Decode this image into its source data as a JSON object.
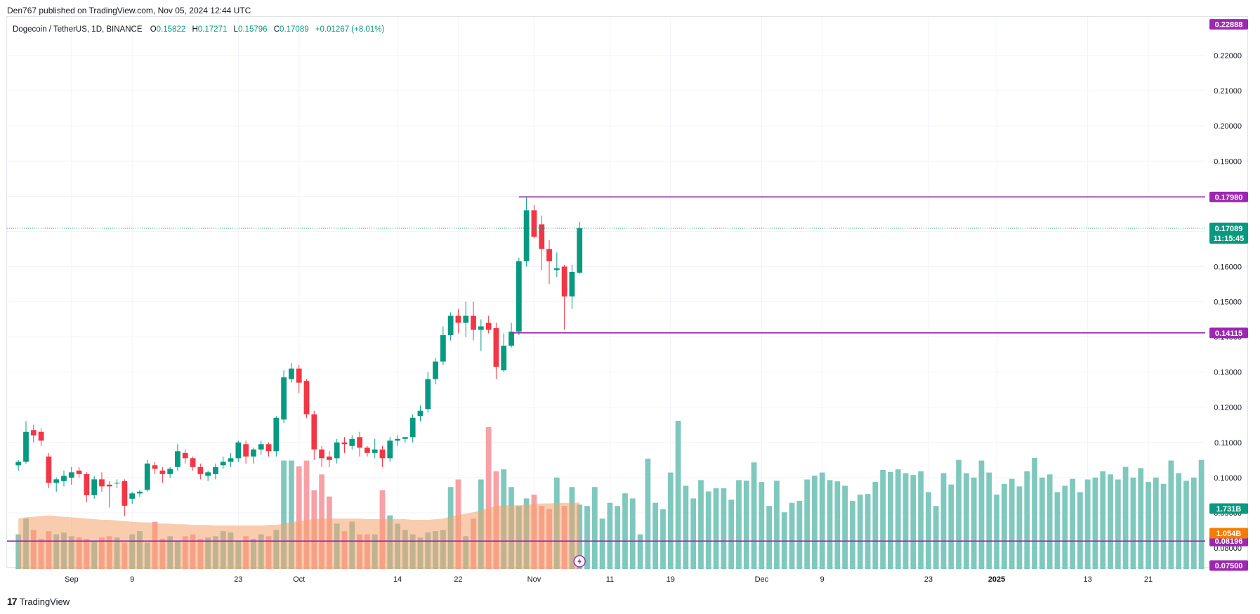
{
  "header": {
    "publisher": "Den767 published on TradingView.com, Nov 05, 2024 12:44 UTC"
  },
  "legend": {
    "symbol": "Dogecoin / TetherUS, 1D, BINANCE",
    "open_key": "O",
    "open": "0.15822",
    "high_key": "H",
    "high": "0.17271",
    "low_key": "L",
    "low": "0.15796",
    "close_key": "C",
    "close": "0.17089",
    "change": "+0.01267 (+8.01%)"
  },
  "footer": {
    "brand": "TradingView",
    "brand_icon": "tradingview-logo-icon"
  },
  "colors": {
    "up": "#089981",
    "down": "#f23645",
    "up_vol": "#7fc8bd",
    "down_vol": "#f7a1a6",
    "level": "#9c27b0",
    "vol_ma": "#f5a26b",
    "grid": "#f0f3fa",
    "price_line": "#089981"
  },
  "chart_data": {
    "type": "candlestick",
    "interval": "1D",
    "y_axis": {
      "range": [
        0.074,
        0.231
      ],
      "ticks": [
        "0.22000",
        "0.21000",
        "0.20000",
        "0.19000",
        "0.18000",
        "0.17000",
        "0.16000",
        "0.15000",
        "0.14000",
        "0.13000",
        "0.12000",
        "0.11000",
        "0.10000",
        "0.09000",
        "0.08000"
      ],
      "tick_values": [
        0.22,
        0.21,
        0.2,
        0.19,
        0.18,
        0.17,
        0.16,
        0.15,
        0.14,
        0.13,
        0.12,
        0.11,
        0.1,
        0.09,
        0.08
      ]
    },
    "x_axis": {
      "labels": [
        {
          "text": "Sep",
          "bar": 7
        },
        {
          "text": "9",
          "bar": 15
        },
        {
          "text": "23",
          "bar": 29
        },
        {
          "text": "Oct",
          "bar": 37
        },
        {
          "text": "14",
          "bar": 50
        },
        {
          "text": "22",
          "bar": 58
        },
        {
          "text": "Nov",
          "bar": 68
        },
        {
          "text": "11",
          "bar": 78
        },
        {
          "text": "19",
          "bar": 86
        },
        {
          "text": "Dec",
          "bar": 98
        },
        {
          "text": "9",
          "bar": 106
        },
        {
          "text": "23",
          "bar": 120
        },
        {
          "text": "2025",
          "bar": 129
        },
        {
          "text": "13",
          "bar": 141
        },
        {
          "text": "21",
          "bar": 149
        }
      ],
      "total_slots": 158
    },
    "candles": [
      {
        "o": 0.1035,
        "h": 0.105,
        "l": 0.102,
        "c": 0.1045
      },
      {
        "o": 0.1045,
        "h": 0.116,
        "l": 0.104,
        "c": 0.113
      },
      {
        "o": 0.1135,
        "h": 0.115,
        "l": 0.11,
        "c": 0.112
      },
      {
        "o": 0.113,
        "h": 0.114,
        "l": 0.109,
        "c": 0.1105
      },
      {
        "o": 0.106,
        "h": 0.107,
        "l": 0.097,
        "c": 0.0985
      },
      {
        "o": 0.0985,
        "h": 0.1,
        "l": 0.096,
        "c": 0.0995
      },
      {
        "o": 0.099,
        "h": 0.102,
        "l": 0.0975,
        "c": 0.1005
      },
      {
        "o": 0.1,
        "h": 0.103,
        "l": 0.098,
        "c": 0.1015
      },
      {
        "o": 0.102,
        "h": 0.103,
        "l": 0.1,
        "c": 0.101
      },
      {
        "o": 0.101,
        "h": 0.1015,
        "l": 0.093,
        "c": 0.095
      },
      {
        "o": 0.095,
        "h": 0.1005,
        "l": 0.094,
        "c": 0.0995
      },
      {
        "o": 0.0995,
        "h": 0.1015,
        "l": 0.096,
        "c": 0.0975
      },
      {
        "o": 0.098,
        "h": 0.099,
        "l": 0.0915,
        "c": 0.0975
      },
      {
        "o": 0.0985,
        "h": 0.0995,
        "l": 0.097,
        "c": 0.0985
      },
      {
        "o": 0.099,
        "h": 0.0995,
        "l": 0.089,
        "c": 0.092
      },
      {
        "o": 0.094,
        "h": 0.096,
        "l": 0.0925,
        "c": 0.0955
      },
      {
        "o": 0.0955,
        "h": 0.0965,
        "l": 0.0945,
        "c": 0.096
      },
      {
        "o": 0.0965,
        "h": 0.105,
        "l": 0.096,
        "c": 0.104
      },
      {
        "o": 0.1035,
        "h": 0.1045,
        "l": 0.101,
        "c": 0.1025
      },
      {
        "o": 0.102,
        "h": 0.103,
        "l": 0.0985,
        "c": 0.101
      },
      {
        "o": 0.101,
        "h": 0.103,
        "l": 0.1,
        "c": 0.1025
      },
      {
        "o": 0.103,
        "h": 0.1095,
        "l": 0.102,
        "c": 0.1075
      },
      {
        "o": 0.107,
        "h": 0.108,
        "l": 0.104,
        "c": 0.1055
      },
      {
        "o": 0.1055,
        "h": 0.106,
        "l": 0.102,
        "c": 0.103
      },
      {
        "o": 0.103,
        "h": 0.104,
        "l": 0.0995,
        "c": 0.101
      },
      {
        "o": 0.1005,
        "h": 0.102,
        "l": 0.099,
        "c": 0.1015
      },
      {
        "o": 0.101,
        "h": 0.104,
        "l": 0.0995,
        "c": 0.103
      },
      {
        "o": 0.1035,
        "h": 0.106,
        "l": 0.1025,
        "c": 0.1045
      },
      {
        "o": 0.1045,
        "h": 0.107,
        "l": 0.103,
        "c": 0.1055
      },
      {
        "o": 0.1055,
        "h": 0.1105,
        "l": 0.1045,
        "c": 0.11
      },
      {
        "o": 0.1095,
        "h": 0.1105,
        "l": 0.104,
        "c": 0.106
      },
      {
        "o": 0.106,
        "h": 0.1085,
        "l": 0.104,
        "c": 0.108
      },
      {
        "o": 0.108,
        "h": 0.1105,
        "l": 0.1065,
        "c": 0.1095
      },
      {
        "o": 0.1095,
        "h": 0.11,
        "l": 0.106,
        "c": 0.1075
      },
      {
        "o": 0.1075,
        "h": 0.1175,
        "l": 0.106,
        "c": 0.117
      },
      {
        "o": 0.1165,
        "h": 0.1305,
        "l": 0.1155,
        "c": 0.1285
      },
      {
        "o": 0.128,
        "h": 0.1325,
        "l": 0.127,
        "c": 0.131
      },
      {
        "o": 0.131,
        "h": 0.132,
        "l": 0.124,
        "c": 0.127
      },
      {
        "o": 0.1275,
        "h": 0.128,
        "l": 0.117,
        "c": 0.118
      },
      {
        "o": 0.118,
        "h": 0.119,
        "l": 0.105,
        "c": 0.108
      },
      {
        "o": 0.108,
        "h": 0.109,
        "l": 0.103,
        "c": 0.1055
      },
      {
        "o": 0.106,
        "h": 0.1075,
        "l": 0.103,
        "c": 0.105
      },
      {
        "o": 0.1055,
        "h": 0.111,
        "l": 0.104,
        "c": 0.11
      },
      {
        "o": 0.11,
        "h": 0.1115,
        "l": 0.107,
        "c": 0.1095
      },
      {
        "o": 0.109,
        "h": 0.112,
        "l": 0.108,
        "c": 0.111
      },
      {
        "o": 0.1115,
        "h": 0.113,
        "l": 0.106,
        "c": 0.1085
      },
      {
        "o": 0.1085,
        "h": 0.109,
        "l": 0.106,
        "c": 0.107
      },
      {
        "o": 0.107,
        "h": 0.111,
        "l": 0.1055,
        "c": 0.108
      },
      {
        "o": 0.108,
        "h": 0.109,
        "l": 0.103,
        "c": 0.1055
      },
      {
        "o": 0.1055,
        "h": 0.1115,
        "l": 0.1045,
        "c": 0.1105
      },
      {
        "o": 0.1105,
        "h": 0.112,
        "l": 0.109,
        "c": 0.111
      },
      {
        "o": 0.111,
        "h": 0.1115,
        "l": 0.11,
        "c": 0.1115
      },
      {
        "o": 0.1115,
        "h": 0.118,
        "l": 0.11,
        "c": 0.117
      },
      {
        "o": 0.1175,
        "h": 0.1205,
        "l": 0.116,
        "c": 0.119
      },
      {
        "o": 0.1195,
        "h": 0.13,
        "l": 0.1185,
        "c": 0.128
      },
      {
        "o": 0.128,
        "h": 0.134,
        "l": 0.1265,
        "c": 0.133
      },
      {
        "o": 0.133,
        "h": 0.143,
        "l": 0.132,
        "c": 0.1405
      },
      {
        "o": 0.1405,
        "h": 0.147,
        "l": 0.139,
        "c": 0.146
      },
      {
        "o": 0.146,
        "h": 0.148,
        "l": 0.141,
        "c": 0.144
      },
      {
        "o": 0.144,
        "h": 0.15,
        "l": 0.14,
        "c": 0.146
      },
      {
        "o": 0.146,
        "h": 0.15,
        "l": 0.139,
        "c": 0.142
      },
      {
        "o": 0.142,
        "h": 0.145,
        "l": 0.136,
        "c": 0.143
      },
      {
        "o": 0.144,
        "h": 0.146,
        "l": 0.141,
        "c": 0.142
      },
      {
        "o": 0.1425,
        "h": 0.144,
        "l": 0.128,
        "c": 0.1315
      },
      {
        "o": 0.1305,
        "h": 0.141,
        "l": 0.13,
        "c": 0.1375
      },
      {
        "o": 0.1375,
        "h": 0.144,
        "l": 0.137,
        "c": 0.1415
      },
      {
        "o": 0.1415,
        "h": 0.1625,
        "l": 0.1405,
        "c": 0.1615
      },
      {
        "o": 0.1615,
        "h": 0.1798,
        "l": 0.16,
        "c": 0.176
      },
      {
        "o": 0.176,
        "h": 0.1775,
        "l": 0.168,
        "c": 0.1685
      },
      {
        "o": 0.172,
        "h": 0.1745,
        "l": 0.159,
        "c": 0.165
      },
      {
        "o": 0.165,
        "h": 0.1675,
        "l": 0.155,
        "c": 0.1615
      },
      {
        "o": 0.159,
        "h": 0.164,
        "l": 0.157,
        "c": 0.1595
      },
      {
        "o": 0.16,
        "h": 0.1605,
        "l": 0.142,
        "c": 0.1515
      },
      {
        "o": 0.1515,
        "h": 0.1605,
        "l": 0.148,
        "c": 0.1585
      },
      {
        "o": 0.15822,
        "h": 0.17271,
        "l": 0.15796,
        "c": 0.17089
      }
    ],
    "volume": {
      "scale_max": 2.45,
      "values": [
        0.55,
        0.8,
        0.62,
        0.48,
        0.6,
        0.55,
        0.58,
        0.52,
        0.5,
        0.48,
        0.45,
        0.5,
        0.52,
        0.5,
        0.42,
        0.55,
        0.6,
        0.42,
        0.75,
        0.48,
        0.52,
        0.45,
        0.52,
        0.55,
        0.48,
        0.5,
        0.52,
        0.6,
        0.58,
        0.45,
        0.52,
        0.48,
        0.55,
        0.52,
        0.62,
        1.72,
        1.72,
        1.63,
        1.72,
        1.25,
        1.5,
        1.15,
        0.72,
        0.6,
        0.75,
        0.55,
        0.55,
        0.55,
        1.25,
        0.85,
        0.72,
        0.62,
        0.55,
        0.5,
        0.58,
        0.6,
        0.62,
        1.3,
        1.42,
        0.52,
        0.8,
        1.42,
        2.25,
        1.55,
        1.58,
        1.3,
        1.0,
        1.12,
        1.18,
        1.0,
        0.95,
        1.45,
        1.0,
        1.3,
        1.02,
        1.0,
        1.3,
        0.8,
        1.05,
        1.0,
        1.2,
        1.12,
        0.55,
        1.75,
        1.05,
        0.95,
        1.53,
        2.35,
        1.32,
        1.12,
        1.41,
        1.23,
        1.28,
        1.28,
        1.1,
        1.41,
        1.4,
        1.69,
        1.38,
        1.0,
        1.4,
        0.9,
        1.05,
        1.08,
        1.42,
        1.48,
        1.53,
        1.41,
        1.39,
        1.32,
        1.08,
        1.18,
        1.19,
        1.38,
        1.57,
        1.54,
        1.58,
        1.52,
        1.49,
        1.55,
        1.22,
        1.0,
        1.52,
        1.34,
        1.73,
        1.52,
        1.45,
        1.72,
        1.53,
        1.18,
        1.35,
        1.43,
        1.31,
        1.55,
        1.76,
        1.45,
        1.5,
        1.22,
        1.32,
        1.43,
        1.22,
        1.42,
        1.45,
        1.55,
        1.5,
        1.42,
        1.62,
        1.45,
        1.6,
        1.38,
        1.45,
        1.35,
        1.72,
        1.52,
        1.4,
        1.45,
        1.73
      ],
      "ma": [
        0.8,
        0.82,
        0.83,
        0.84,
        0.85,
        0.84,
        0.83,
        0.82,
        0.81,
        0.8,
        0.79,
        0.78,
        0.78,
        0.77,
        0.76,
        0.75,
        0.74,
        0.74,
        0.73,
        0.72,
        0.72,
        0.71,
        0.71,
        0.7,
        0.7,
        0.7,
        0.69,
        0.69,
        0.69,
        0.69,
        0.69,
        0.69,
        0.69,
        0.7,
        0.7,
        0.72,
        0.74,
        0.76,
        0.78,
        0.79,
        0.8,
        0.8,
        0.8,
        0.8,
        0.8,
        0.8,
        0.79,
        0.79,
        0.79,
        0.79,
        0.79,
        0.79,
        0.78,
        0.78,
        0.78,
        0.79,
        0.8,
        0.83,
        0.86,
        0.88,
        0.9,
        0.93,
        0.97,
        1.0,
        1.01,
        1.01,
        1.01,
        1.02,
        1.03,
        1.04,
        1.04,
        1.05,
        1.05,
        1.05,
        1.054
      ]
    },
    "levels": [
      {
        "value": 0.1798,
        "label": "0.17980",
        "start_bar": 66
      },
      {
        "value": 0.14115,
        "label": "0.14115",
        "start_bar": 65
      },
      {
        "value": 0.08196,
        "label": "0.08196",
        "start_bar": 0
      }
    ],
    "price_badge": {
      "value": 0.17089,
      "label": "0.17089",
      "countdown": "11:15:45"
    },
    "top_badge": {
      "value": 0.22888,
      "label": "0.22888"
    },
    "bottom_badge": {
      "label": "0.07500"
    },
    "volume_badge": {
      "label": "1.731B"
    },
    "vol_ma_badge": {
      "label": "1.054B"
    }
  }
}
